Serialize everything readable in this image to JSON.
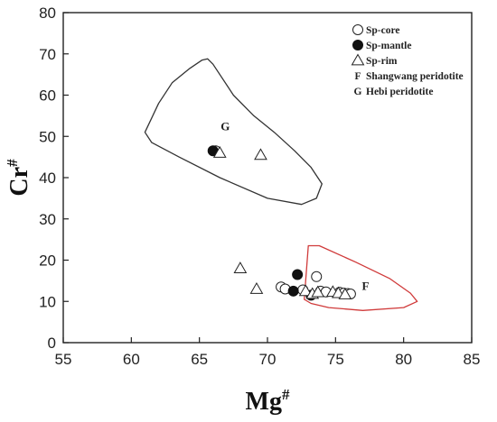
{
  "chart_data": {
    "type": "scatter",
    "xlabel": "Mg",
    "xlabel_sup": "#",
    "ylabel": "Cr",
    "ylabel_sup": "#",
    "xlim": [
      55,
      85
    ],
    "ylim": [
      0,
      80
    ],
    "x_ticks": [
      55,
      60,
      65,
      70,
      75,
      80,
      85
    ],
    "y_ticks": [
      0,
      10,
      20,
      30,
      40,
      50,
      60,
      70,
      80
    ],
    "grid": false,
    "legend_position": "top-right",
    "legend": [
      {
        "marker": "open-circle",
        "label": "Sp-core"
      },
      {
        "marker": "filled-circle",
        "label": "Sp-mantle"
      },
      {
        "marker": "open-triangle",
        "label": "Sp-rim"
      },
      {
        "marker": "F",
        "label": "Shangwang peridotite"
      },
      {
        "marker": "G",
        "label": "Hebi peridotite"
      }
    ],
    "series": [
      {
        "marker": "open-circle",
        "points": [
          [
            66.2,
            46.5
          ],
          [
            71.0,
            13.5
          ],
          [
            71.3,
            13.0
          ],
          [
            72.6,
            12.8
          ],
          [
            73.6,
            16.0
          ],
          [
            73.9,
            12.5
          ],
          [
            74.3,
            12.3
          ],
          [
            75.3,
            12.2
          ],
          [
            75.6,
            12.0
          ],
          [
            75.9,
            11.9
          ],
          [
            76.1,
            11.8
          ]
        ]
      },
      {
        "marker": "filled-circle",
        "points": [
          [
            66.0,
            46.5
          ],
          [
            72.2,
            16.5
          ],
          [
            71.9,
            12.5
          ],
          [
            73.2,
            11.5
          ]
        ]
      },
      {
        "marker": "open-triangle",
        "points": [
          [
            66.5,
            46.0
          ],
          [
            69.5,
            45.5
          ],
          [
            68.0,
            18.0
          ],
          [
            69.2,
            13.0
          ],
          [
            72.8,
            12.5
          ],
          [
            73.3,
            11.8
          ],
          [
            73.7,
            12.2
          ],
          [
            74.8,
            12.3
          ],
          [
            75.2,
            12.0
          ],
          [
            75.7,
            11.7
          ]
        ]
      }
    ],
    "regions": [
      {
        "label": "G",
        "color": "#333333",
        "label_at": [
          66.9,
          51.5
        ],
        "polygon": [
          [
            61,
            51
          ],
          [
            62,
            58
          ],
          [
            63,
            63
          ],
          [
            64.3,
            66.5
          ],
          [
            65.2,
            68.5
          ],
          [
            65.6,
            68.8
          ],
          [
            66,
            67.5
          ],
          [
            67.5,
            60
          ],
          [
            69,
            55
          ],
          [
            70.5,
            51
          ],
          [
            72,
            46.5
          ],
          [
            73.2,
            42.5
          ],
          [
            74,
            38.5
          ],
          [
            73.6,
            35
          ],
          [
            72.5,
            33.5
          ],
          [
            70,
            35
          ],
          [
            66.5,
            40
          ],
          [
            63.5,
            45
          ],
          [
            61.5,
            48.5
          ]
        ]
      },
      {
        "label": "F",
        "color": "#d03a3a",
        "label_at": [
          77.2,
          12.8
        ],
        "polygon": [
          [
            72.7,
            10.5
          ],
          [
            73.0,
            23.5
          ],
          [
            73.8,
            23.5
          ],
          [
            76.5,
            19.5
          ],
          [
            79,
            15.5
          ],
          [
            80.5,
            12
          ],
          [
            81,
            10
          ],
          [
            80,
            8.5
          ],
          [
            77,
            7.8
          ],
          [
            74.5,
            8.5
          ],
          [
            73.2,
            9.5
          ]
        ]
      }
    ]
  }
}
